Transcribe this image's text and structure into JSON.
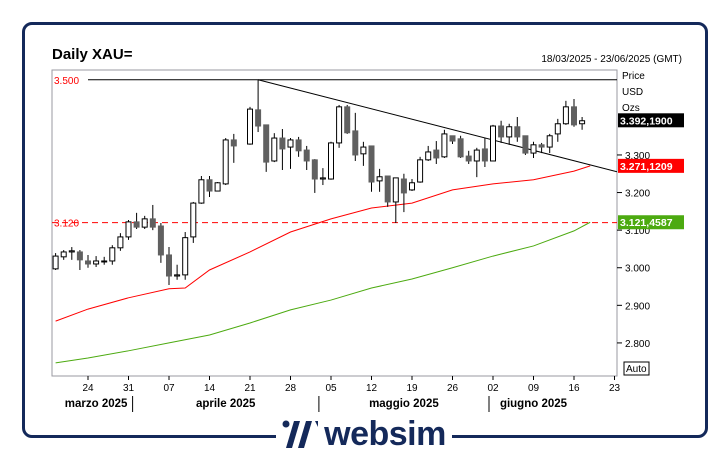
{
  "header": {
    "title": "Daily XAU=",
    "date_range": "18/03/2025 - 23/06/2025 (GMT)"
  },
  "logo": {
    "text": "websim",
    "color": "#14295a"
  },
  "chart_data": {
    "type": "candlestick",
    "title": "Daily XAU=",
    "unit_labels": [
      "Price",
      "USD",
      "Ozs"
    ],
    "ylim": [
      2712,
      3526
    ],
    "y_ticks": [
      {
        "v": 3300,
        "label": "3.300"
      },
      {
        "v": 3200,
        "label": "3.200"
      },
      {
        "v": 3100,
        "label": "3.100"
      },
      {
        "v": 3000,
        "label": "3.000"
      },
      {
        "v": 2900,
        "label": "2.900"
      },
      {
        "v": 2800,
        "label": "2.800"
      }
    ],
    "x_ticks": [
      {
        "date": "2025-03-24",
        "label": "24"
      },
      {
        "date": "2025-03-31",
        "label": "31"
      },
      {
        "date": "2025-04-07",
        "label": "07"
      },
      {
        "date": "2025-04-14",
        "label": "14"
      },
      {
        "date": "2025-04-21",
        "label": "21"
      },
      {
        "date": "2025-04-28",
        "label": "28"
      },
      {
        "date": "2025-05-05",
        "label": "05"
      },
      {
        "date": "2025-05-12",
        "label": "12"
      },
      {
        "date": "2025-05-19",
        "label": "19"
      },
      {
        "date": "2025-05-26",
        "label": "26"
      },
      {
        "date": "2025-06-02",
        "label": "02"
      },
      {
        "date": "2025-06-09",
        "label": "09"
      },
      {
        "date": "2025-06-16",
        "label": "16"
      },
      {
        "date": "2025-06-23",
        "label": "23"
      }
    ],
    "months": [
      {
        "label": "marzo 2025",
        "date": "2025-03-25"
      },
      {
        "label": "aprile 2025",
        "date": "2025-04-16"
      },
      {
        "label": "maggio 2025",
        "date": "2025-05-16"
      },
      {
        "label": "giugno 2025",
        "date": "2025-06-09"
      }
    ],
    "month_separators": [
      "2025-04-01",
      "2025-05-02",
      "2025-06-02"
    ],
    "auto_label": "Auto",
    "candles": [
      [
        "2025-03-18",
        2997,
        3039,
        2994,
        3031
      ],
      [
        "2025-03-19",
        3029,
        3047,
        3021,
        3042
      ],
      [
        "2025-03-20",
        3042,
        3055,
        3021,
        3045
      ],
      [
        "2025-03-21",
        3042,
        3047,
        2994,
        3021
      ],
      [
        "2025-03-24",
        3018,
        3034,
        3000,
        3010
      ],
      [
        "2025-03-25",
        3010,
        3031,
        3002,
        3018
      ],
      [
        "2025-03-26",
        3016,
        3029,
        3008,
        3018
      ],
      [
        "2025-03-27",
        3018,
        3060,
        3008,
        3053
      ],
      [
        "2025-03-28",
        3053,
        3092,
        3045,
        3082
      ],
      [
        "2025-03-31",
        3082,
        3127,
        3074,
        3122
      ],
      [
        "2025-04-01",
        3122,
        3146,
        3103,
        3108
      ],
      [
        "2025-04-02",
        3108,
        3138,
        3103,
        3130
      ],
      [
        "2025-04-03",
        3130,
        3167,
        3100,
        3108
      ],
      [
        "2025-04-04",
        3111,
        3119,
        3013,
        3034
      ],
      [
        "2025-04-07",
        3034,
        3055,
        2954,
        2978
      ],
      [
        "2025-04-08",
        2978,
        3008,
        2968,
        2981
      ],
      [
        "2025-04-09",
        2981,
        3095,
        2968,
        3080
      ],
      [
        "2025-04-10",
        3082,
        3175,
        3066,
        3172
      ],
      [
        "2025-04-11",
        3172,
        3244,
        3170,
        3234
      ],
      [
        "2025-04-14",
        3234,
        3244,
        3188,
        3204
      ],
      [
        "2025-04-15",
        3204,
        3228,
        3204,
        3226
      ],
      [
        "2025-04-16",
        3223,
        3345,
        3220,
        3340
      ],
      [
        "2025-04-17",
        3340,
        3356,
        3279,
        3324
      ],
      [
        "2025-04-21",
        3329,
        3428,
        3327,
        3422
      ],
      [
        "2025-04-22",
        3420,
        3500,
        3361,
        3377
      ],
      [
        "2025-04-23",
        3380,
        3380,
        3255,
        3281
      ],
      [
        "2025-04-24",
        3284,
        3358,
        3281,
        3345
      ],
      [
        "2025-04-25",
        3345,
        3369,
        3260,
        3316
      ],
      [
        "2025-04-28",
        3321,
        3345,
        3263,
        3340
      ],
      [
        "2025-04-29",
        3340,
        3348,
        3295,
        3311
      ],
      [
        "2025-04-30",
        3313,
        3324,
        3260,
        3284
      ],
      [
        "2025-05-01",
        3287,
        3289,
        3199,
        3236
      ],
      [
        "2025-05-02",
        3236,
        3265,
        3220,
        3239
      ],
      [
        "2025-05-05",
        3236,
        3335,
        3234,
        3332
      ],
      [
        "2025-05-06",
        3332,
        3433,
        3319,
        3428
      ],
      [
        "2025-05-07",
        3428,
        3433,
        3356,
        3359
      ],
      [
        "2025-05-08",
        3364,
        3412,
        3284,
        3300
      ],
      [
        "2025-05-09",
        3303,
        3335,
        3271,
        3321
      ],
      [
        "2025-05-12",
        3324,
        3324,
        3202,
        3228
      ],
      [
        "2025-05-13",
        3231,
        3263,
        3202,
        3242
      ],
      [
        "2025-05-14",
        3244,
        3244,
        3162,
        3175
      ],
      [
        "2025-05-15",
        3175,
        3239,
        3119,
        3239
      ],
      [
        "2025-05-16",
        3236,
        3250,
        3148,
        3199
      ],
      [
        "2025-05-19",
        3207,
        3236,
        3204,
        3226
      ],
      [
        "2025-05-20",
        3228,
        3295,
        3226,
        3287
      ],
      [
        "2025-05-21",
        3287,
        3324,
        3284,
        3308
      ],
      [
        "2025-05-22",
        3313,
        3337,
        3276,
        3292
      ],
      [
        "2025-05-23",
        3295,
        3367,
        3292,
        3356
      ],
      [
        "2025-05-26",
        3351,
        3351,
        3329,
        3337
      ],
      [
        "2025-05-27",
        3343,
        3351,
        3292,
        3295
      ],
      [
        "2025-05-28",
        3297,
        3311,
        3276,
        3284
      ],
      [
        "2025-05-29",
        3284,
        3319,
        3241,
        3313
      ],
      [
        "2025-05-30",
        3316,
        3345,
        3268,
        3284
      ],
      [
        "2025-06-02",
        3284,
        3380,
        3284,
        3377
      ],
      [
        "2025-06-03",
        3377,
        3391,
        3332,
        3348
      ],
      [
        "2025-06-04",
        3348,
        3383,
        3327,
        3375
      ],
      [
        "2025-06-05",
        3375,
        3401,
        3335,
        3348
      ],
      [
        "2025-06-06",
        3351,
        3351,
        3300,
        3305
      ],
      [
        "2025-06-09",
        3305,
        3335,
        3292,
        3327
      ],
      [
        "2025-06-10",
        3327,
        3332,
        3305,
        3321
      ],
      [
        "2025-06-11",
        3321,
        3356,
        3305,
        3351
      ],
      [
        "2025-06-12",
        3356,
        3396,
        3335,
        3383
      ],
      [
        "2025-06-13",
        3383,
        3444,
        3380,
        3428
      ],
      [
        "2025-06-16",
        3428,
        3449,
        3375,
        3380
      ],
      [
        "2025-06-17",
        3383,
        3401,
        3367,
        3391
      ]
    ],
    "moving_averages": [
      {
        "color": "#ff0000",
        "last_label": "3.271,1209",
        "points": [
          [
            "2025-03-18",
            2858
          ],
          [
            "2025-03-24",
            2890
          ],
          [
            "2025-03-31",
            2920
          ],
          [
            "2025-04-07",
            2944
          ],
          [
            "2025-04-09",
            2946
          ],
          [
            "2025-04-14",
            2994
          ],
          [
            "2025-04-21",
            3042
          ],
          [
            "2025-04-28",
            3095
          ],
          [
            "2025-05-05",
            3130
          ],
          [
            "2025-05-12",
            3159
          ],
          [
            "2025-05-19",
            3172
          ],
          [
            "2025-05-26",
            3207
          ],
          [
            "2025-06-02",
            3223
          ],
          [
            "2025-06-09",
            3234
          ],
          [
            "2025-06-16",
            3257
          ],
          [
            "2025-06-18",
            3271
          ]
        ]
      },
      {
        "color": "#4caa10",
        "last_label": "3.121,4587",
        "points": [
          [
            "2025-03-18",
            2747
          ],
          [
            "2025-03-24",
            2760
          ],
          [
            "2025-03-31",
            2779
          ],
          [
            "2025-04-07",
            2800
          ],
          [
            "2025-04-14",
            2821
          ],
          [
            "2025-04-21",
            2853
          ],
          [
            "2025-04-28",
            2888
          ],
          [
            "2025-05-05",
            2914
          ],
          [
            "2025-05-12",
            2946
          ],
          [
            "2025-05-19",
            2970
          ],
          [
            "2025-05-26",
            3000
          ],
          [
            "2025-06-02",
            3031
          ],
          [
            "2025-06-09",
            3058
          ],
          [
            "2025-06-16",
            3098
          ],
          [
            "2025-06-18",
            3121
          ]
        ]
      }
    ],
    "last_price": {
      "value": 3392.19,
      "label": "3.392,1900",
      "color": "#000000"
    },
    "levels": [
      {
        "value": 3500,
        "label": "3.500",
        "style": "solid",
        "color": "#000000",
        "from": "2025-03-24"
      },
      {
        "value": 3120,
        "label": "3.120",
        "style": "dashed",
        "color": "#ff0000"
      }
    ],
    "trendline": {
      "from": [
        "2025-04-22",
        3500
      ],
      "to": [
        "2025-06-23",
        3257
      ],
      "color": "#000000"
    },
    "colors": {
      "up_candle": "#ffffff",
      "down_candle": "#606060",
      "level_label": "#ff0000"
    }
  }
}
